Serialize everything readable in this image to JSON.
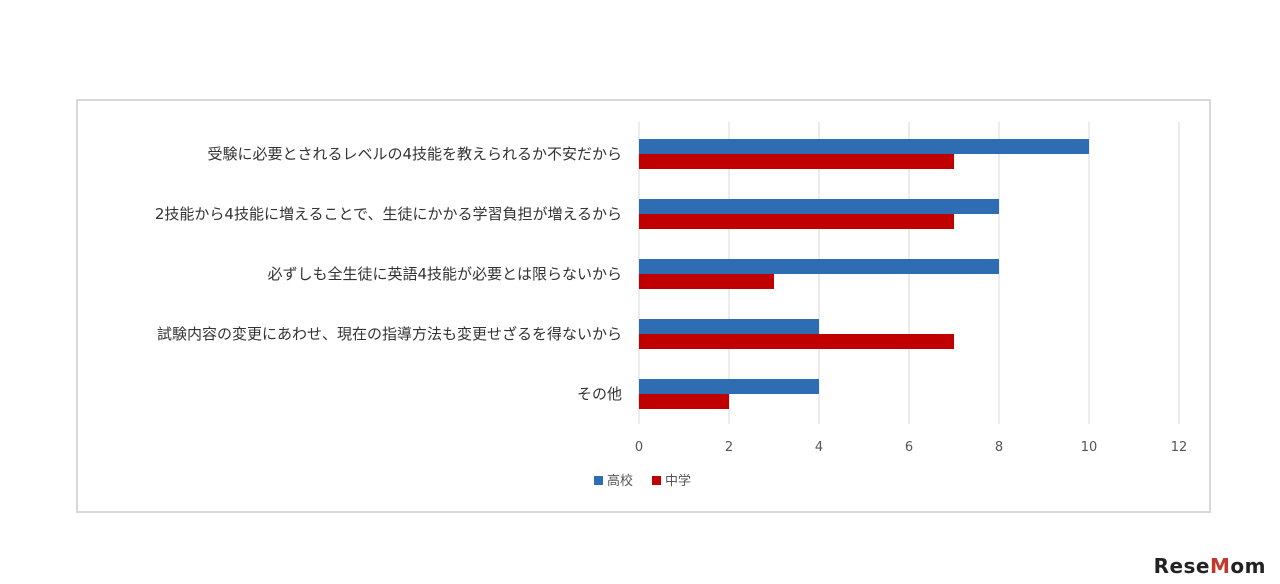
{
  "chart_data": {
    "type": "bar",
    "orientation": "horizontal",
    "categories": [
      "受験に必要とされるレベルの4技能を教えられるか不安だから",
      "2技能から4技能に増えることで、生徒にかかる学習負担が増えるから",
      "必ずしも全生徒に英語4技能が必要とは限らないから",
      "試験内容の変更にあわせ、現在の指導方法も変更せざるを得ないから",
      "その他"
    ],
    "series": [
      {
        "name": "高校",
        "values": [
          10,
          8,
          8,
          4,
          4
        ],
        "color": "#2e6db4"
      },
      {
        "name": "中学",
        "values": [
          7,
          7,
          3,
          7,
          2
        ],
        "color": "#c00000"
      }
    ],
    "xlim": [
      0,
      12
    ],
    "xticks": [
      0,
      2,
      4,
      6,
      8,
      10,
      12
    ],
    "grid": true,
    "legend_position": "bottom"
  },
  "watermark": {
    "text_pre": "Rese",
    "text_o": "M",
    "text_post": "om"
  }
}
